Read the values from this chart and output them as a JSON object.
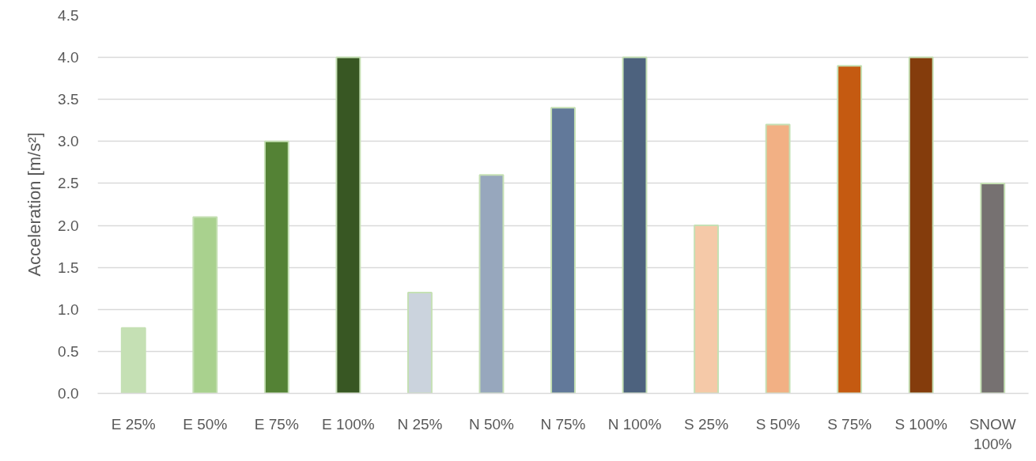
{
  "chart_data": {
    "type": "bar",
    "ylabel": "Acceleration [m/s²]",
    "categories": [
      "E 25%",
      "E 50%",
      "E 75%",
      "E 100%",
      "N 25%",
      "N 50%",
      "N 75%",
      "N 100%",
      "S 25%",
      "S 50%",
      "S 75%",
      "S 100%",
      "SNOW 100%"
    ],
    "values": [
      0.78,
      2.1,
      3.0,
      4.0,
      1.2,
      2.6,
      3.4,
      4.0,
      2.0,
      3.2,
      3.9,
      4.0,
      2.5
    ],
    "colors": [
      "#c5e0b4",
      "#a9d18e",
      "#548235",
      "#385723",
      "#cbd3dd",
      "#97a7bd",
      "#62799a",
      "#4d627e",
      "#f5c9a8",
      "#f2b084",
      "#c55a11",
      "#843c0c",
      "#767171"
    ],
    "ylim": [
      0,
      4.5
    ],
    "yticks": [
      {
        "value": 0,
        "label": "0.0"
      },
      {
        "value": 0.5,
        "label": "0.5"
      },
      {
        "value": 1,
        "label": "1.0"
      },
      {
        "value": 1.5,
        "label": "1.5"
      },
      {
        "value": 2,
        "label": "2.0"
      },
      {
        "value": 2.5,
        "label": "2.5"
      },
      {
        "value": 3,
        "label": "3.0"
      },
      {
        "value": 3.5,
        "label": "3.5"
      },
      {
        "value": 4,
        "label": "4.0"
      },
      {
        "value": 4.5,
        "label": "4.5"
      }
    ],
    "grid": "y"
  }
}
